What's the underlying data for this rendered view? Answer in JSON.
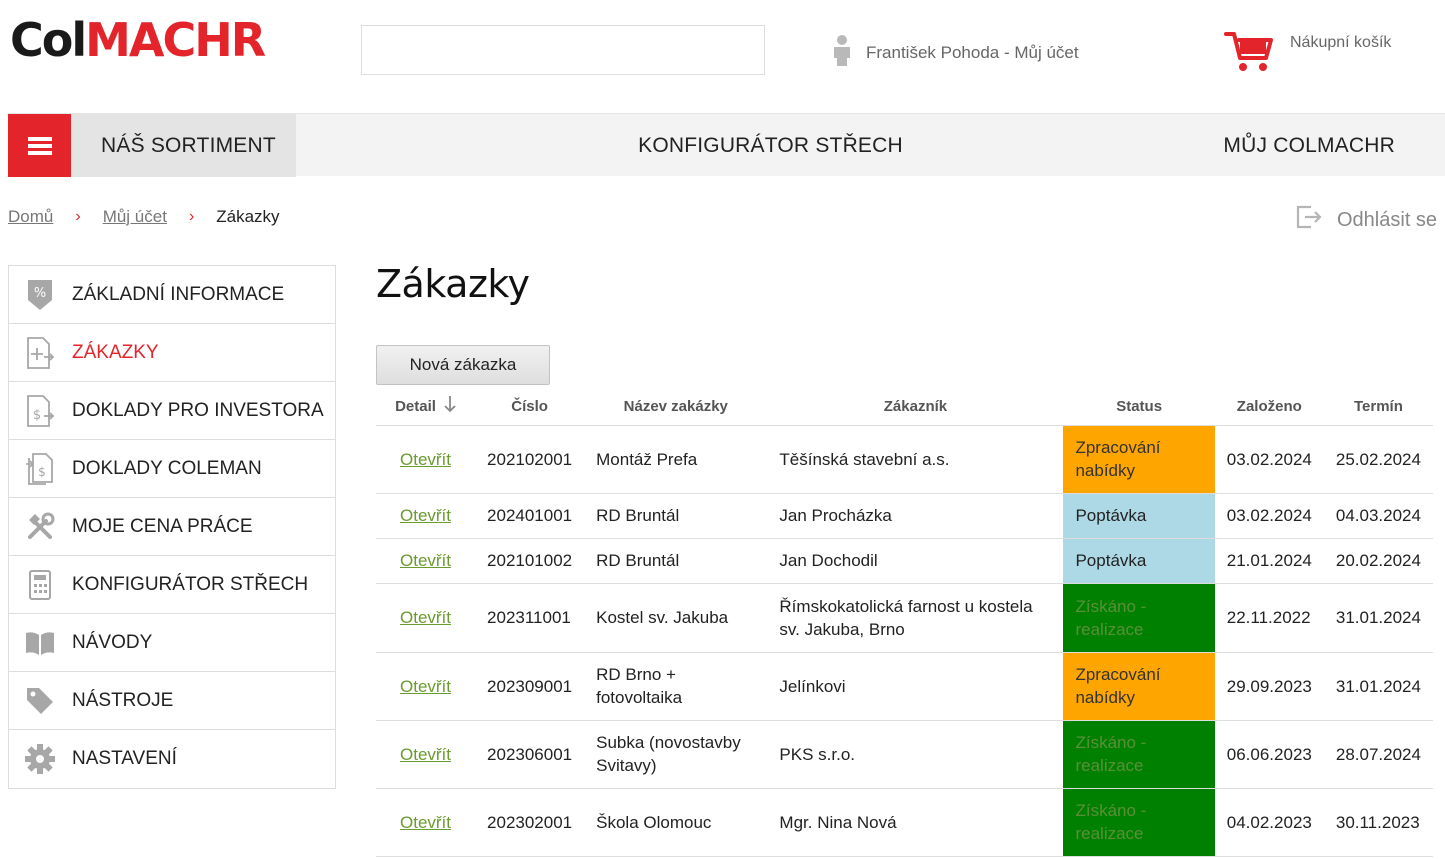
{
  "header": {
    "logo_left": "Col",
    "logo_right": "MACHR",
    "search_placeholder": "",
    "account_label": "František Pohoda - Můj účet",
    "cart_label": "Nákupní košík"
  },
  "nav": {
    "sortiment": "NÁŠ SORTIMENT",
    "konfigurator": "KONFIGURÁTOR STŘECH",
    "muj": "MŮJ COLMACHR"
  },
  "breadcrumb": {
    "home": "Domů",
    "account": "Můj účet",
    "current": "Zákazky",
    "separator": "›"
  },
  "logout_label": "Odhlásit se",
  "sidebar": {
    "items": [
      {
        "label": "ZÁKLADNÍ INFORMACE",
        "icon": "percent-tag-icon"
      },
      {
        "label": "ZÁKAZKY",
        "icon": "document-add-icon"
      },
      {
        "label": "DOKLADY PRO INVESTORA",
        "icon": "document-dollar-icon"
      },
      {
        "label": "DOKLADY COLEMAN",
        "icon": "documents-dollar-icon"
      },
      {
        "label": "MOJE CENA PRÁCE",
        "icon": "tools-icon"
      },
      {
        "label": "KONFIGURÁTOR STŘECH",
        "icon": "calculator-icon"
      },
      {
        "label": "NÁVODY",
        "icon": "book-icon"
      },
      {
        "label": "NÁSTROJE",
        "icon": "tag-icon"
      },
      {
        "label": "NASTAVENÍ",
        "icon": "gear-icon"
      }
    ],
    "active_index": 1
  },
  "main": {
    "title": "Zákazky",
    "new_button": "Nová zákazka"
  },
  "table": {
    "columns": [
      "Detail",
      "Číslo",
      "Název zakázky",
      "Zákazník",
      "Status",
      "Založeno",
      "Termín"
    ],
    "rows": [
      {
        "link": "Otevřít",
        "number": "202102001",
        "name": "Montáž Prefa",
        "customer": "Těšínská stavební a.s.",
        "status": "Zpracování nabídky",
        "status_bg": "#ffa500",
        "status_fg": "#333333",
        "created": "03.02.2024",
        "deadline": "25.02.2024"
      },
      {
        "link": "Otevřít",
        "number": "202401001",
        "name": "RD Bruntál",
        "customer": "Jan Procházka",
        "status": "Poptávka",
        "status_bg": "#add8e6",
        "status_fg": "#222222",
        "created": "03.02.2024",
        "deadline": "04.03.2024"
      },
      {
        "link": "Otevřít",
        "number": "202101002",
        "name": "RD Bruntál",
        "customer": "Jan Dochodil",
        "status": "Poptávka",
        "status_bg": "#add8e6",
        "status_fg": "#222222",
        "created": "21.01.2024",
        "deadline": "20.02.2024"
      },
      {
        "link": "Otevřít",
        "number": "202311001",
        "name": "Kostel sv. Jakuba",
        "customer": "Římskokatolická farnost u kostela sv. Jakuba, Brno",
        "status": "Získáno - realizace",
        "status_bg": "#008000",
        "status_fg": "#5a8f3a",
        "created": "22.11.2022",
        "deadline": "31.01.2024"
      },
      {
        "link": "Otevřít",
        "number": "202309001",
        "name": "RD Brno + fotovoltaika",
        "customer": "Jelínkovi",
        "status": "Zpracování nabídky",
        "status_bg": "#ffa500",
        "status_fg": "#333333",
        "created": "29.09.2023",
        "deadline": "31.01.2024"
      },
      {
        "link": "Otevřít",
        "number": "202306001",
        "name": "Subka (novostavby Svitavy)",
        "customer": "PKS s.r.o.",
        "status": "Získáno - realizace",
        "status_bg": "#008000",
        "status_fg": "#5a8f3a",
        "created": "06.06.2023",
        "deadline": "28.07.2024"
      },
      {
        "link": "Otevřít",
        "number": "202302001",
        "name": "Škola Olomouc",
        "customer": "Mgr. Nina Nová",
        "status": "Získáno - realizace",
        "status_bg": "#008000",
        "status_fg": "#5a8f3a",
        "created": "04.02.2023",
        "deadline": "30.11.2023"
      }
    ]
  },
  "colors": {
    "brand_red": "#e3242b",
    "link_green": "#6a9b2e",
    "icon_gray": "#a0a0a0"
  }
}
